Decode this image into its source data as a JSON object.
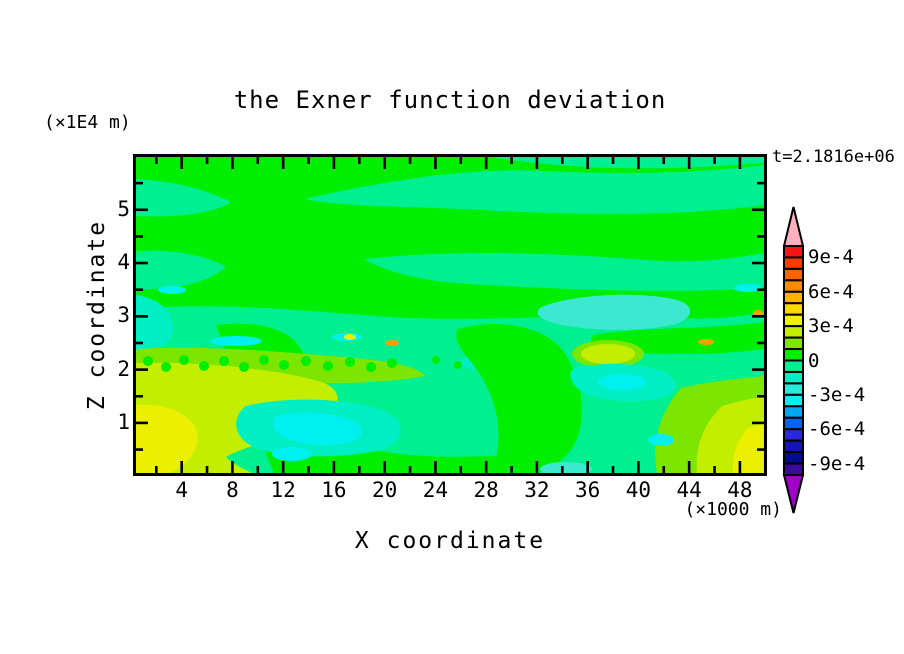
{
  "title": "the Exner function deviation",
  "annotations": {
    "y_axis_unit": "(×1E4 m)",
    "x_axis_unit": "(×1000 m)",
    "time": "t=2.1816e+06"
  },
  "axes": {
    "x": {
      "label": "X coordinate",
      "range": [
        0.4,
        49.9
      ],
      "major_ticks": [
        4,
        8,
        12,
        16,
        20,
        24,
        28,
        32,
        36,
        40,
        44,
        48
      ],
      "minor_tick_step": 2
    },
    "y": {
      "label": "Z coordinate",
      "range": [
        0.06,
        5.99
      ],
      "major_ticks": [
        1,
        2,
        3,
        4,
        5
      ],
      "minor_tick_step": 0.5
    }
  },
  "colorbar": {
    "segment_colors": [
      "#F81414",
      "#FF3A00",
      "#FF6200",
      "#FF8A00",
      "#FFB200",
      "#FFD800",
      "#F0F000",
      "#C4EE00",
      "#7CE600",
      "#00EE00",
      "#00F091",
      "#00EEC4",
      "#2CE8D8",
      "#00F0F0",
      "#00A8F0",
      "#0064F0",
      "#2828DC",
      "#1414B4",
      "#000E8C",
      "#3C0A96"
    ],
    "over_color": "#FFB0BE",
    "under_color": "#A000C8",
    "tick_labels": [
      {
        "text": "9e-4",
        "boundary": 1
      },
      {
        "text": "6e-4",
        "boundary": 4
      },
      {
        "text": "3e-4",
        "boundary": 7
      },
      {
        "text": "0",
        "boundary": 10
      },
      {
        "text": "-3e-4",
        "boundary": 13
      },
      {
        "text": "-6e-4",
        "boundary": 16
      },
      {
        "text": "-9e-4",
        "boundary": 19
      }
    ]
  },
  "palette": {
    "green": "#00EE00",
    "spring": "#00F091",
    "aqua": "#00EEC4",
    "turquoise": "#3CE8D0",
    "cyan": "#00F0F0",
    "chartreuse": "#7CE600",
    "yellowgreen": "#C4EE00",
    "yellow": "#EAF000",
    "orange": "#FFA000"
  },
  "chart_data": {
    "type": "filled_contour",
    "title": "the Exner function deviation",
    "xlabel": "X coordinate",
    "x_unit": "×1000 m",
    "xlim": [
      0.4,
      49.9
    ],
    "x_ticks": [
      4,
      8,
      12,
      16,
      20,
      24,
      28,
      32,
      36,
      40,
      44,
      48
    ],
    "ylabel": "Z coordinate",
    "y_unit": "×1E4 m",
    "ylim": [
      0.06,
      5.99
    ],
    "y_ticks": [
      1,
      2,
      3,
      4,
      5
    ],
    "time_annotation": "t=2.1816e+06",
    "contour_levels": {
      "min": -0.001,
      "max": 0.001,
      "interval": 0.0001
    },
    "labeled_levels": [
      "9e-4",
      "6e-4",
      "3e-4",
      "0",
      "-3e-4",
      "-6e-4",
      "-9e-4"
    ],
    "field_features": [
      {
        "region": "x 0-6, z 0-1.5",
        "value": "+2e-4 to +4e-4 near-surface maximum (yellow-green/yellow), left corner"
      },
      {
        "region": "x 41-50, z 0-1.9",
        "value": "+1e-4 to +4e-4 near-surface maximum (chartreuse/yellow), right corner"
      },
      {
        "region": "x 9-20, z 0.4-1.5",
        "value": "-1e-4 to -4e-4 minima with cyan cores ≈ -3e-4"
      },
      {
        "region": "x 35-43, z 1.4-2.1",
        "value": "-1e-4 to -4e-4 minima with cyan cores ≈ -3e-4"
      },
      {
        "region": "x 32-44, z 2.7-3.5",
        "value": "-2e-4 to -3e-4 turquoise patch"
      },
      {
        "region": "z ≈ 2.0-2.4",
        "value": "+1e-4 to +2e-4 speckled band with isolated +5e-4 orange flecks"
      },
      {
        "region": "x 0-50, z 2.4-6.0",
        "value": "alternating horizontal bands between 0..+1e-4 (green) and -1e-4..0 (spring green)"
      }
    ]
  }
}
